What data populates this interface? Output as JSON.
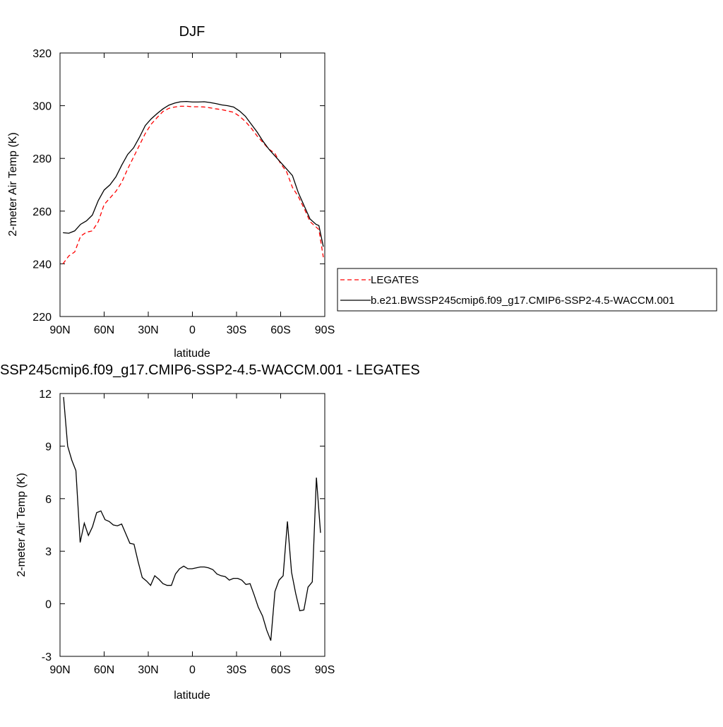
{
  "chart_data": [
    {
      "type": "line",
      "title": "DJF",
      "xlabel": "latitude",
      "ylabel": "2-meter Air Temp (K)",
      "x": [
        88,
        84,
        80,
        76,
        72,
        68,
        64,
        60,
        56,
        52,
        48,
        44,
        40,
        36,
        32,
        28,
        24,
        20,
        16,
        12,
        8,
        4,
        0,
        -4,
        -8,
        -12,
        -16,
        -20,
        -24,
        -28,
        -32,
        -36,
        -40,
        -44,
        -48,
        -52,
        -56,
        -60,
        -64,
        -68,
        -72,
        -76,
        -80,
        -84,
        -86,
        -89
      ],
      "series": [
        {
          "name": "LEGATES",
          "color": "#ff0000",
          "dash": true,
          "values": [
            240,
            243,
            244.5,
            250.5,
            252,
            252.5,
            256,
            262.5,
            265,
            267.5,
            271,
            276,
            280.5,
            285,
            289.5,
            293,
            295.5,
            297.8,
            299,
            299.5,
            299.8,
            299.8,
            299.6,
            299.6,
            299.5,
            299.2,
            298.8,
            298.5,
            298,
            297.5,
            296,
            294,
            291.5,
            288.5,
            286,
            283.5,
            282,
            278,
            275,
            269,
            265.5,
            261,
            256,
            254,
            253,
            242.5
          ]
        },
        {
          "name": "b.e21.BWSSP245cmip6.f09_g17.CMIP6-SSP2-4.5-WACCM.001",
          "color": "#000000",
          "dash": false,
          "values": [
            251.8,
            251.6,
            252.5,
            255,
            256.3,
            258.5,
            264,
            268,
            270,
            273,
            277.5,
            281.5,
            284,
            288,
            292.5,
            295,
            297,
            298.8,
            300.2,
            301,
            301.5,
            301.6,
            301.4,
            301.4,
            301.5,
            301.2,
            300.8,
            300.3,
            300,
            299.5,
            298,
            296,
            293,
            290,
            286.5,
            283.5,
            281,
            278.5,
            276,
            273.5,
            267,
            262,
            257,
            255,
            254.5,
            246.5
          ]
        }
      ],
      "xlim": [
        90,
        -90
      ],
      "ylim": [
        220,
        320
      ],
      "xticks": [
        {
          "value": 90,
          "label": "90N"
        },
        {
          "value": 60,
          "label": "60N"
        },
        {
          "value": 30,
          "label": "30N"
        },
        0,
        {
          "value": -30,
          "label": "30S"
        },
        {
          "value": -60,
          "label": "60S"
        },
        {
          "value": -90,
          "label": "90S"
        }
      ],
      "yticks": [
        220,
        240,
        260,
        280,
        300,
        320
      ],
      "legend": true
    },
    {
      "type": "line",
      "title": "SSP245cmip6.f09_g17.CMIP6-SSP2-4.5-WACCM.001 - LEGATES",
      "xlabel": "latitude",
      "ylabel": "2-meter Air Temp (K)",
      "x": [
        87.6,
        84.8,
        82.0,
        79.2,
        76.3,
        73.5,
        70.7,
        67.9,
        65.1,
        62.2,
        59.4,
        56.6,
        53.8,
        51.0,
        48.1,
        45.3,
        42.5,
        39.7,
        36.9,
        34.1,
        31.2,
        28.4,
        25.6,
        22.8,
        20.0,
        17.2,
        14.3,
        11.5,
        8.7,
        5.9,
        3.1,
        0.2,
        -2.6,
        -5.4,
        -8.2,
        -11.0,
        -13.9,
        -16.7,
        -19.5,
        -22.3,
        -25.1,
        -27.9,
        -30.8,
        -33.6,
        -36.4,
        -39.2,
        -42.0,
        -44.8,
        -47.7,
        -50.5,
        -53.3,
        -56.1,
        -58.9,
        -61.7,
        -64.6,
        -67.4,
        -70.2,
        -73.0,
        -75.8,
        -78.6,
        -81.5,
        -84.3,
        -87.1
      ],
      "series": [
        {
          "color": "#000000",
          "dash": false,
          "values": [
            11.8,
            9.0,
            8.2,
            7.6,
            3.5,
            4.6,
            3.9,
            4.4,
            5.2,
            5.3,
            4.8,
            4.7,
            4.5,
            4.45,
            4.55,
            4.0,
            3.45,
            3.4,
            2.4,
            1.5,
            1.3,
            1.05,
            1.6,
            1.4,
            1.15,
            1.05,
            1.05,
            1.7,
            2.0,
            2.15,
            2.0,
            2.0,
            2.05,
            2.1,
            2.1,
            2.05,
            1.95,
            1.7,
            1.6,
            1.55,
            1.35,
            1.45,
            1.45,
            1.35,
            1.1,
            1.15,
            0.5,
            -0.2,
            -0.7,
            -1.5,
            -2.1,
            0.7,
            1.35,
            1.6,
            4.7,
            1.8,
            0.6,
            -0.4,
            -0.35,
            0.95,
            1.25,
            7.2,
            4.05
          ]
        }
      ],
      "xlim": [
        90,
        -90
      ],
      "ylim": [
        -3,
        12
      ],
      "xticks": [
        {
          "value": 90,
          "label": "90N"
        },
        {
          "value": 60,
          "label": "60N"
        },
        {
          "value": 30,
          "label": "30N"
        },
        0,
        {
          "value": -30,
          "label": "30S"
        },
        {
          "value": -60,
          "label": "60S"
        },
        {
          "value": -90,
          "label": "90S"
        }
      ],
      "yticks": [
        -3,
        0,
        3,
        6,
        9,
        12
      ],
      "legend": false
    }
  ]
}
